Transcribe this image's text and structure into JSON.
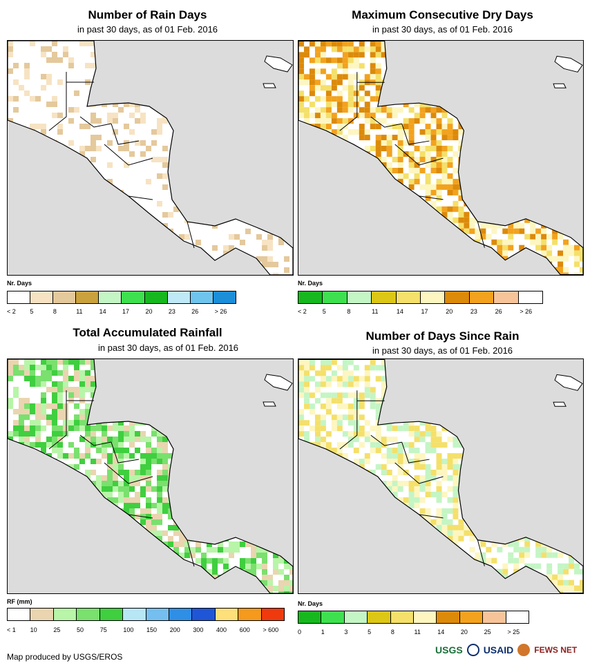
{
  "panels": [
    {
      "id": "rain-days",
      "title": "Number of Rain Days",
      "subtitle": "in past 30 days, as of 01 Feb. 2016",
      "legend_label": "Nr. Days",
      "colors": [
        "#ffffff",
        "#f7e3c3",
        "#e4c99c",
        "#c9a23e",
        "#c4f5c4",
        "#3fe04f",
        "#17b81f",
        "#bfe9f7",
        "#6fc4ee",
        "#1c8fd8"
      ],
      "ticks": [
        "< 2",
        "5",
        "8",
        "11",
        "14",
        "17",
        "20",
        "23",
        "26",
        "> 26"
      ]
    },
    {
      "id": "max-dry-days",
      "title": "Maximum Consecutive Dry Days",
      "subtitle": "in past 30 days, as of 01 Feb. 2016",
      "legend_label": "Nr. Days",
      "colors": [
        "#17b81f",
        "#3fe04f",
        "#c4f5c4",
        "#dcc716",
        "#f4e06a",
        "#fdf6c0",
        "#dc8a0a",
        "#f2a21e",
        "#f7c49a",
        "#ffffff"
      ],
      "ticks": [
        "< 2",
        "5",
        "8",
        "11",
        "14",
        "17",
        "20",
        "23",
        "26",
        "> 26"
      ]
    },
    {
      "id": "total-rainfall",
      "title": "Total Accumulated Rainfall",
      "subtitle": "in past 30 days, as of 01 Feb. 2016",
      "legend_label": "RF (mm)",
      "colors": [
        "#ffffff",
        "#ead5b0",
        "#b8f5a8",
        "#7ae06e",
        "#3fcf3f",
        "#b7e6f5",
        "#74bff0",
        "#2f8fe6",
        "#1f56d8",
        "#fde07a",
        "#f59a1c",
        "#f03a0e"
      ],
      "ticks": [
        "< 1",
        "10",
        "25",
        "50",
        "75",
        "100",
        "150",
        "200",
        "300",
        "400",
        "600",
        "> 600"
      ]
    },
    {
      "id": "days-since-rain",
      "title": "Number of Days Since Rain",
      "subtitle": "in past 30 days, as of 01 Feb. 2016",
      "legend_label": "Nr. Days",
      "colors": [
        "#17b81f",
        "#3fe04f",
        "#c4f5c4",
        "#dcc716",
        "#f4e06a",
        "#fdf6c0",
        "#dc8a0a",
        "#f2a21e",
        "#f7c49a",
        "#ffffff"
      ],
      "ticks": [
        "0",
        "1",
        "3",
        "5",
        "8",
        "11",
        "14",
        "20",
        "25",
        "> 25"
      ]
    }
  ],
  "footer": {
    "text": "Map produced by USGS/EROS"
  },
  "logos": {
    "usgs": "USGS",
    "usaid": "USAID",
    "fews": "FEWS NET"
  },
  "map_colors": {
    "ocean": "#dcdcdc",
    "land": "#ffffff",
    "border": "#000000"
  }
}
